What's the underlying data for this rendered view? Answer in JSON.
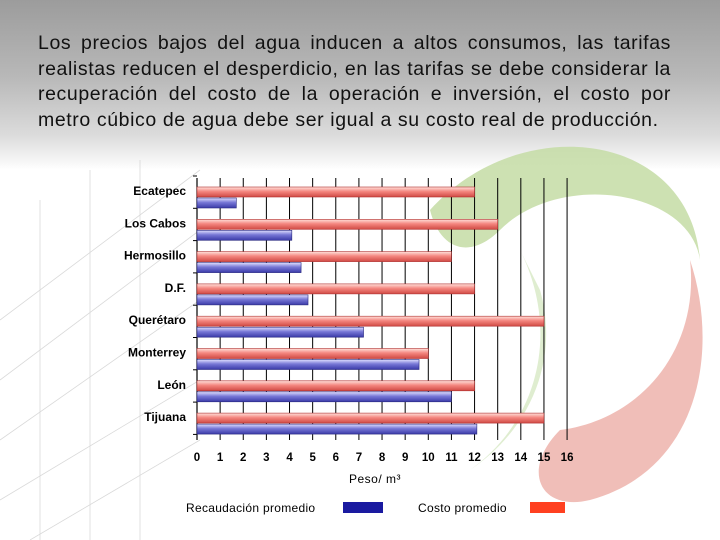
{
  "slide": {
    "body_text": "Los precios bajos del agua inducen a altos consumos, las tarifas realistas reducen el desperdicio, en las tarifas se debe considerar la recuperación del costo de la operación e inversión, el costo por metro cúbico de agua debe ser igual a su costo real de producción."
  },
  "chart_data": {
    "type": "bar",
    "orientation": "horizontal",
    "categories": [
      "Ecatepec",
      "Los Cabos",
      "Hermosillo",
      "D.F.",
      "Querétaro",
      "Monterrey",
      "León",
      "Tijuana"
    ],
    "series": [
      {
        "name": "Costo promedio",
        "color": "#f4867f",
        "values": [
          12,
          13,
          11,
          12,
          15,
          10,
          12,
          15
        ]
      },
      {
        "name": "Recaudación promedio",
        "color": "#5f5fc8",
        "values": [
          1.7,
          4.1,
          4.5,
          4.8,
          7.2,
          9.6,
          11,
          12.1
        ]
      }
    ],
    "xlabel": "Peso/ m³",
    "xlim": [
      0,
      16
    ],
    "xticks": [
      "0",
      "1",
      "2",
      "3",
      "4",
      "5",
      "6",
      "7",
      "8",
      "9",
      "10",
      "11",
      "12",
      "13",
      "14",
      "15",
      "16"
    ],
    "grid": "vertical",
    "legend": [
      {
        "label": "Recaudación promedio",
        "color": "#1a1aa0"
      },
      {
        "label": "Costo promedio",
        "color": "#ff4020"
      }
    ],
    "legend_position": "bottom"
  }
}
